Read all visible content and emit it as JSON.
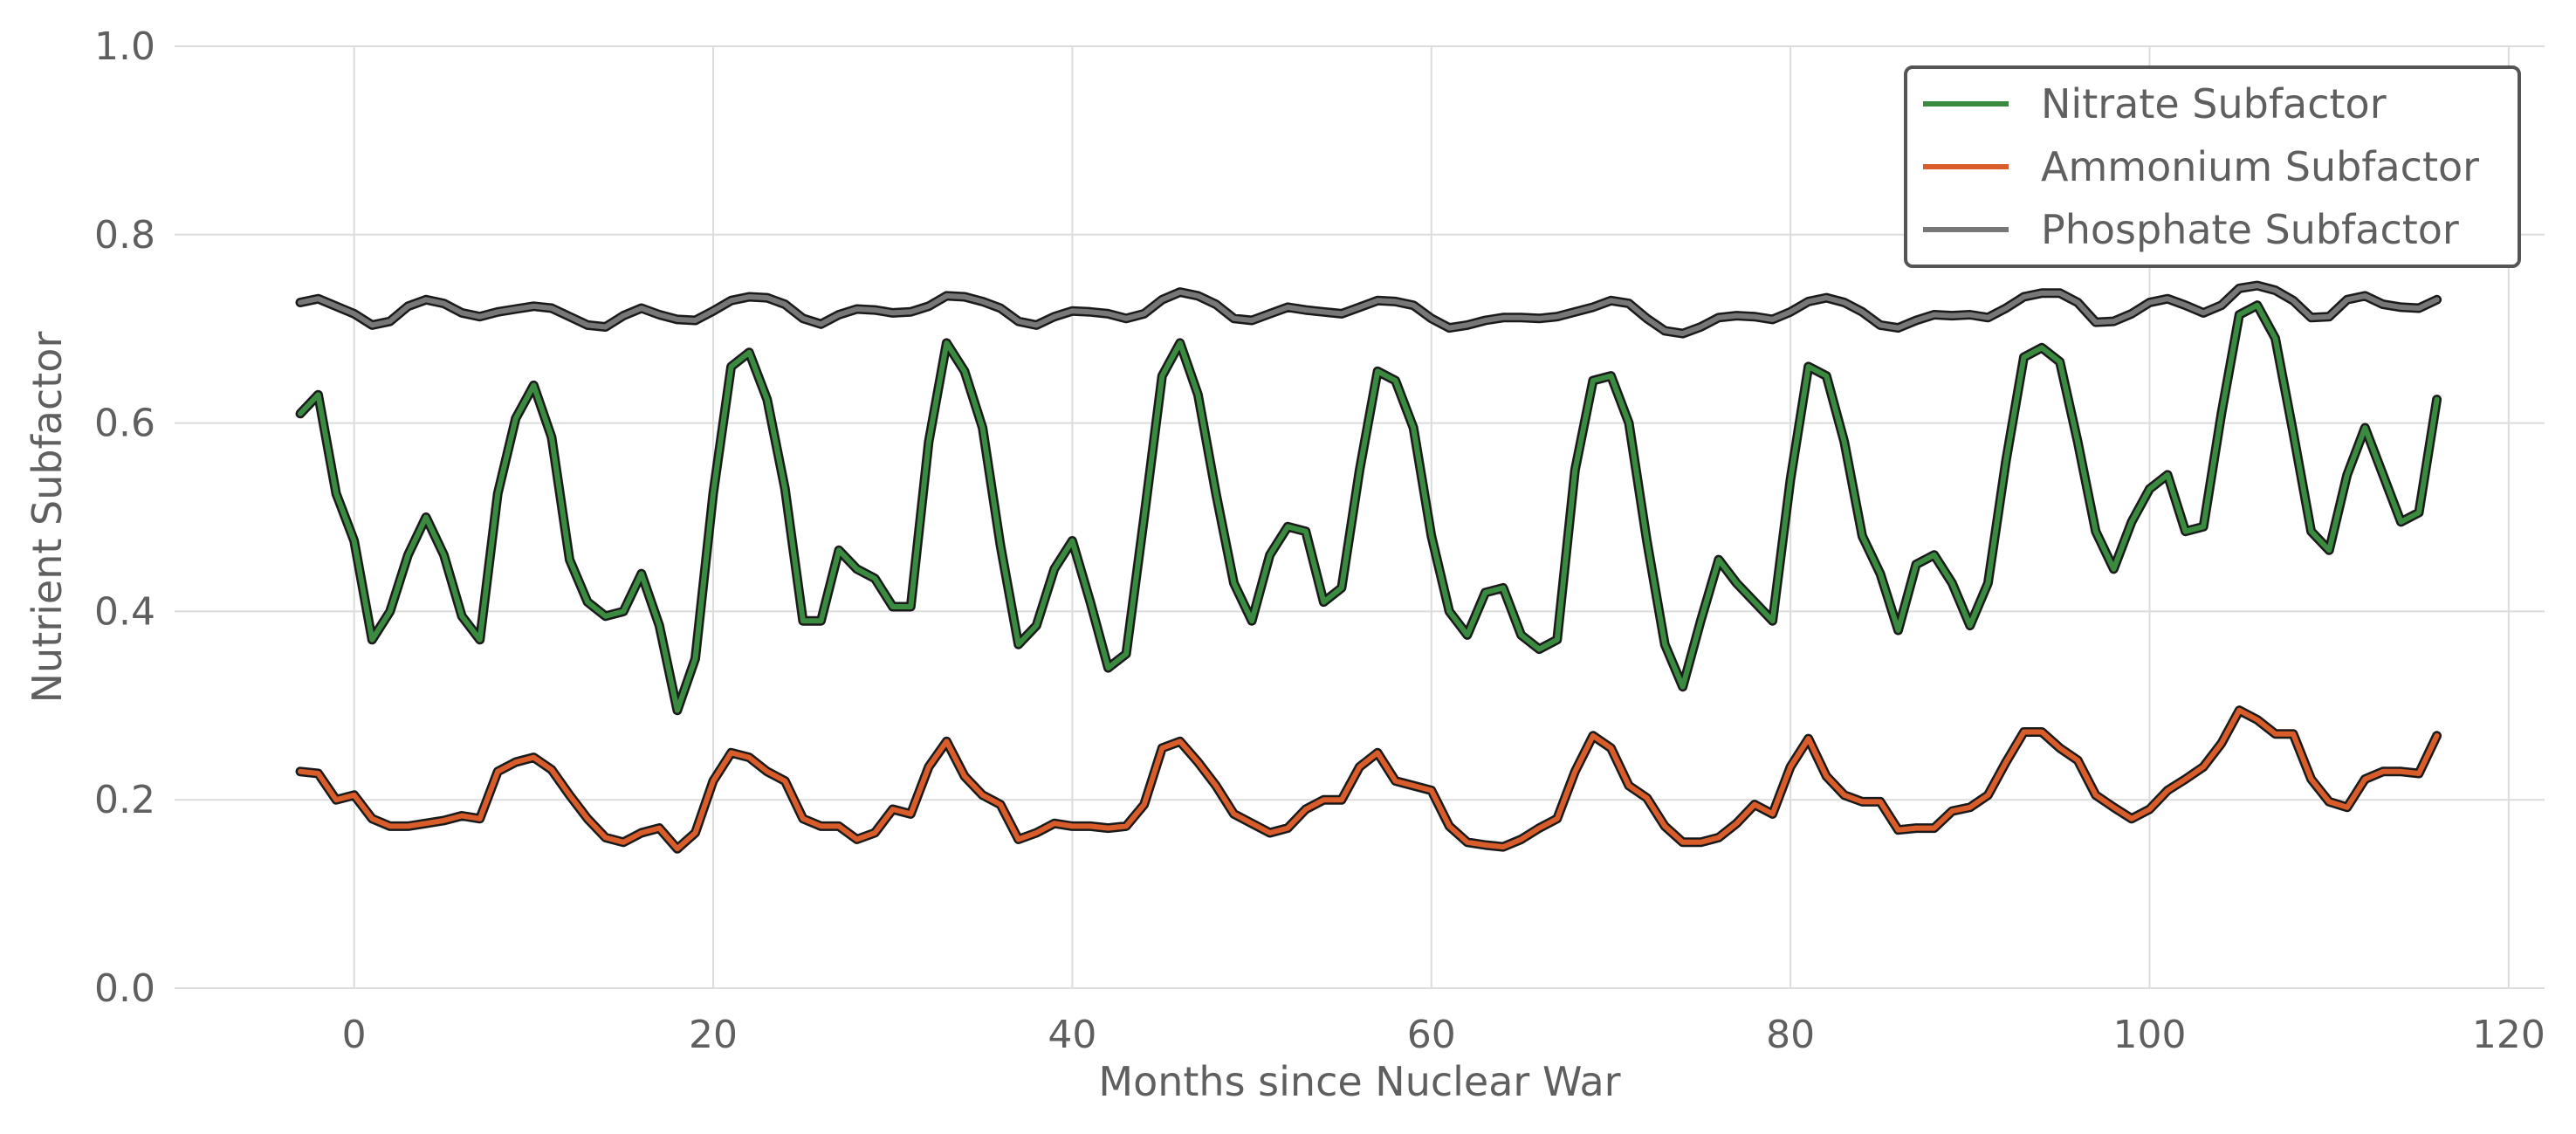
{
  "chart_data": {
    "type": "line",
    "title": "",
    "xlabel": "Months since Nuclear War",
    "ylabel": "Nutrient Subfactor",
    "xlim": [
      -10,
      122
    ],
    "ylim": [
      0.0,
      1.0
    ],
    "xticks": [
      0,
      20,
      40,
      60,
      80,
      100,
      120
    ],
    "yticks": [
      0.0,
      0.2,
      0.4,
      0.6,
      0.8,
      1.0
    ],
    "xtick_labels": [
      "0",
      "20",
      "40",
      "60",
      "80",
      "100",
      "120"
    ],
    "ytick_labels": [
      "0.0",
      "0.2",
      "0.4",
      "0.6",
      "0.8",
      "1.0"
    ],
    "grid": true,
    "legend_position": "top-right",
    "x": [
      -3,
      -2,
      -1,
      0,
      1,
      2,
      3,
      4,
      5,
      6,
      7,
      8,
      9,
      10,
      11,
      12,
      13,
      14,
      15,
      16,
      17,
      18,
      19,
      20,
      21,
      22,
      23,
      24,
      25,
      26,
      27,
      28,
      29,
      30,
      31,
      32,
      33,
      34,
      35,
      36,
      37,
      38,
      39,
      40,
      41,
      42,
      43,
      44,
      45,
      46,
      47,
      48,
      49,
      50,
      51,
      52,
      53,
      54,
      55,
      56,
      57,
      58,
      59,
      60,
      61,
      62,
      63,
      64,
      65,
      66,
      67,
      68,
      69,
      70,
      71,
      72,
      73,
      74,
      75,
      76,
      77,
      78,
      79,
      80,
      81,
      82,
      83,
      84,
      85,
      86,
      87,
      88,
      89,
      90,
      91,
      92,
      93,
      94,
      95,
      96,
      97,
      98,
      99,
      100,
      101,
      102,
      103,
      104,
      105,
      106,
      107,
      108,
      109,
      110,
      111,
      112,
      113,
      114,
      115,
      116
    ],
    "series": [
      {
        "name": "Nitrate Subfactor",
        "color": "#3a8a3f",
        "values": [
          0.61,
          0.63,
          0.525,
          0.475,
          0.37,
          0.4,
          0.46,
          0.5,
          0.46,
          0.395,
          0.37,
          0.525,
          0.605,
          0.64,
          0.585,
          0.455,
          0.41,
          0.395,
          0.4,
          0.44,
          0.385,
          0.295,
          0.35,
          0.525,
          0.66,
          0.675,
          0.625,
          0.53,
          0.39,
          0.39,
          0.465,
          0.445,
          0.435,
          0.405,
          0.405,
          0.58,
          0.685,
          0.655,
          0.595,
          0.47,
          0.365,
          0.385,
          0.445,
          0.475,
          0.41,
          0.34,
          0.355,
          0.5,
          0.65,
          0.685,
          0.63,
          0.525,
          0.43,
          0.39,
          0.46,
          0.49,
          0.485,
          0.41,
          0.425,
          0.55,
          0.655,
          0.645,
          0.595,
          0.48,
          0.4,
          0.375,
          0.42,
          0.425,
          0.375,
          0.36,
          0.37,
          0.55,
          0.645,
          0.65,
          0.6,
          0.475,
          0.365,
          0.32,
          0.39,
          0.455,
          0.43,
          0.41,
          0.39,
          0.54,
          0.66,
          0.65,
          0.58,
          0.48,
          0.44,
          0.38,
          0.45,
          0.46,
          0.43,
          0.385,
          0.43,
          0.56,
          0.67,
          0.68,
          0.665,
          0.58,
          0.485,
          0.445,
          0.495,
          0.53,
          0.545,
          0.485,
          0.49,
          0.61,
          0.715,
          0.725,
          0.69,
          0.59,
          0.485,
          0.465,
          0.545,
          0.595,
          0.545,
          0.495,
          0.505,
          0.625
        ]
      },
      {
        "name": "Ammonium Subfactor",
        "color": "#d95c2b",
        "values": [
          0.23,
          0.228,
          0.2,
          0.205,
          0.18,
          0.172,
          0.172,
          0.175,
          0.178,
          0.183,
          0.18,
          0.23,
          0.24,
          0.245,
          0.232,
          0.205,
          0.18,
          0.16,
          0.155,
          0.165,
          0.17,
          0.148,
          0.165,
          0.22,
          0.25,
          0.245,
          0.23,
          0.22,
          0.18,
          0.172,
          0.172,
          0.158,
          0.165,
          0.19,
          0.185,
          0.235,
          0.262,
          0.225,
          0.205,
          0.195,
          0.158,
          0.165,
          0.175,
          0.172,
          0.172,
          0.17,
          0.172,
          0.195,
          0.255,
          0.262,
          0.24,
          0.215,
          0.185,
          0.175,
          0.165,
          0.17,
          0.19,
          0.2,
          0.2,
          0.235,
          0.25,
          0.22,
          0.215,
          0.21,
          0.172,
          0.155,
          0.152,
          0.15,
          0.158,
          0.17,
          0.18,
          0.23,
          0.268,
          0.255,
          0.215,
          0.202,
          0.172,
          0.155,
          0.155,
          0.16,
          0.175,
          0.195,
          0.185,
          0.235,
          0.265,
          0.225,
          0.205,
          0.198,
          0.198,
          0.168,
          0.17,
          0.17,
          0.188,
          0.192,
          0.205,
          0.24,
          0.272,
          0.272,
          0.255,
          0.242,
          0.205,
          0.192,
          0.18,
          0.19,
          0.21,
          0.222,
          0.235,
          0.26,
          0.295,
          0.285,
          0.27,
          0.27,
          0.222,
          0.198,
          0.192,
          0.222,
          0.23,
          0.23,
          0.228,
          0.268
        ]
      },
      {
        "name": "Phosphate Subfactor",
        "color": "#777777",
        "values": [
          0.728,
          0.732,
          0.724,
          0.716,
          0.704,
          0.708,
          0.724,
          0.731,
          0.727,
          0.717,
          0.713,
          0.718,
          0.721,
          0.724,
          0.722,
          0.713,
          0.704,
          0.702,
          0.714,
          0.722,
          0.715,
          0.71,
          0.709,
          0.719,
          0.73,
          0.734,
          0.733,
          0.726,
          0.711,
          0.705,
          0.715,
          0.721,
          0.72,
          0.717,
          0.718,
          0.724,
          0.735,
          0.734,
          0.729,
          0.722,
          0.708,
          0.704,
          0.713,
          0.719,
          0.718,
          0.716,
          0.711,
          0.716,
          0.731,
          0.739,
          0.735,
          0.726,
          0.711,
          0.709,
          0.716,
          0.723,
          0.72,
          0.718,
          0.716,
          0.723,
          0.73,
          0.729,
          0.725,
          0.711,
          0.701,
          0.704,
          0.709,
          0.712,
          0.712,
          0.711,
          0.713,
          0.718,
          0.723,
          0.73,
          0.727,
          0.711,
          0.698,
          0.695,
          0.702,
          0.712,
          0.714,
          0.713,
          0.71,
          0.718,
          0.729,
          0.733,
          0.728,
          0.718,
          0.704,
          0.701,
          0.709,
          0.715,
          0.714,
          0.715,
          0.712,
          0.722,
          0.734,
          0.738,
          0.738,
          0.728,
          0.707,
          0.708,
          0.716,
          0.728,
          0.732,
          0.725,
          0.717,
          0.725,
          0.743,
          0.746,
          0.741,
          0.73,
          0.712,
          0.713,
          0.731,
          0.735,
          0.726,
          0.723,
          0.722,
          0.731
        ]
      }
    ]
  }
}
